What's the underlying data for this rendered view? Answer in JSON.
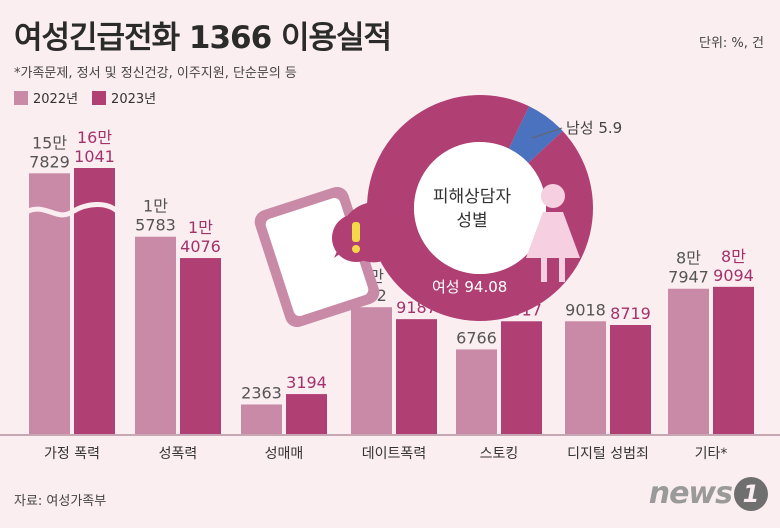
{
  "header": {
    "title": "여성긴급전화 1366 이용실적",
    "unit": "단위: %, 건",
    "note": "*가족문제, 정서 및 정신건강, 이주지원, 단순문의 등"
  },
  "legend": {
    "items": [
      {
        "label": "2022년",
        "color": "#c98aa8"
      },
      {
        "label": "2023년",
        "color": "#b03f73"
      }
    ]
  },
  "chart_data": [
    {
      "type": "bar",
      "categories": [
        "가정 폭력",
        "성폭력",
        "성매매",
        "데이트폭력",
        "스토킹",
        "디지털 성범죄",
        "기타*"
      ],
      "series": [
        {
          "name": "2022년",
          "values": [
            157829,
            15783,
            2363,
            10142,
            6766,
            9018,
            87947
          ],
          "labels": [
            [
              "15만",
              "7829"
            ],
            [
              "1만",
              "5783"
            ],
            [
              "2363"
            ],
            [
              "1만",
              "142"
            ],
            [
              "6766"
            ],
            [
              "9018"
            ],
            [
              "8만",
              "7947"
            ]
          ]
        },
        {
          "name": "2023년",
          "values": [
            161041,
            14076,
            3194,
            9187,
            9017,
            8719,
            89094
          ],
          "labels": [
            [
              "16만",
              "1041"
            ],
            [
              "1만",
              "4076"
            ],
            [
              "3194"
            ],
            [
              "9187"
            ],
            [
              "9017"
            ],
            [
              "8719"
            ],
            [
              "8만",
              "9094"
            ]
          ]
        }
      ],
      "axis_break": "가정 폭력",
      "colors": {
        "2022년": "#c98aa8",
        "2023년": "#b03f73"
      }
    },
    {
      "type": "pie",
      "title": "피해상담자 성별",
      "categories": [
        "여성",
        "남성"
      ],
      "values": [
        94.08,
        5.9
      ],
      "labels": [
        [
          "여성",
          "94.08"
        ],
        [
          "남성",
          "5.9"
        ]
      ],
      "colors": [
        "#b03f73",
        "#4a72bf"
      ]
    }
  ],
  "footer": {
    "source": "자료: 여성가족부",
    "logo_text": "news",
    "logo_mark": "1"
  },
  "icons": [
    "phone-alert-icon",
    "female-figure-icon"
  ]
}
